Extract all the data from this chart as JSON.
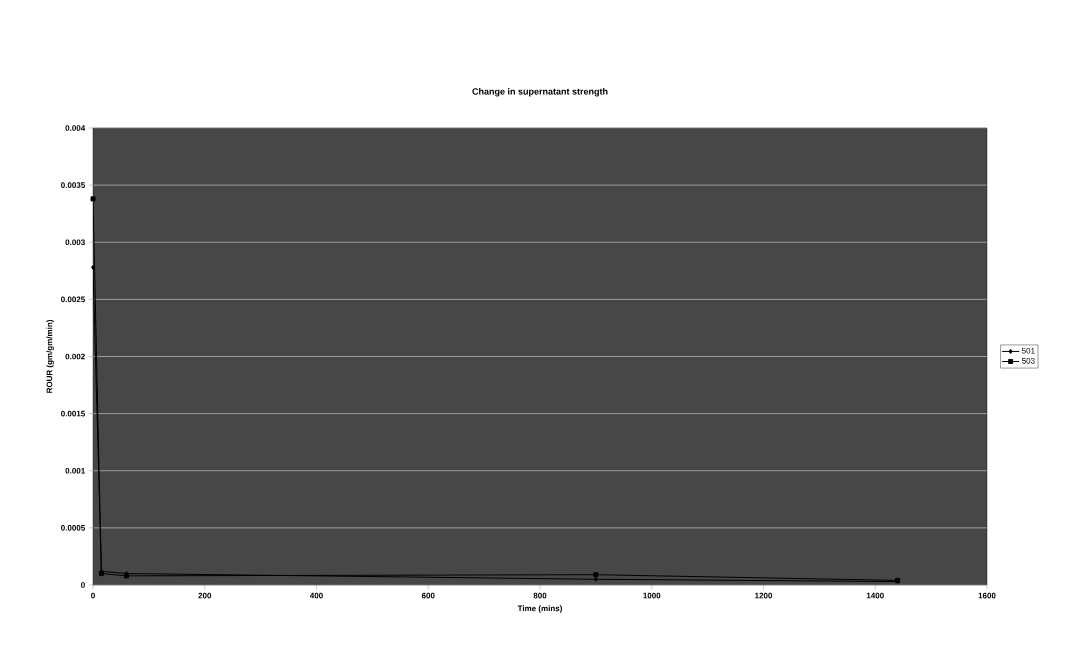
{
  "chart_data": {
    "type": "line",
    "title": "Change in supernatant strength",
    "xlabel": "Time (mins)",
    "ylabel": "ROUR (gm/gm/min)",
    "xlim": [
      0,
      1600
    ],
    "xticks": [
      0,
      200,
      400,
      600,
      800,
      1000,
      1200,
      1400,
      1600
    ],
    "ylim": [
      0,
      0.004
    ],
    "yticks": [
      {
        "value": 0,
        "label": "0"
      },
      {
        "value": 0.0005,
        "label": "0.0005"
      },
      {
        "value": 0.001,
        "label": "0.001"
      },
      {
        "value": 0.0015,
        "label": "0.0015"
      },
      {
        "value": 0.002,
        "label": "0.002"
      },
      {
        "value": 0.0025,
        "label": "0.0025"
      },
      {
        "value": 0.003,
        "label": "0.003"
      },
      {
        "value": 0.0035,
        "label": "0.0035"
      },
      {
        "value": 0.004,
        "label": "0.004"
      }
    ],
    "grid": "y",
    "legend": "right",
    "series": [
      {
        "name": "501",
        "color": "#000000",
        "marker": "diamond",
        "x": [
          0,
          15,
          60,
          900,
          1440
        ],
        "values": [
          0.00278,
          0.00012,
          0.0001,
          5e-05,
          3e-05
        ]
      },
      {
        "name": "503",
        "color": "#000000",
        "marker": "square",
        "x": [
          0,
          15,
          60,
          900,
          1440
        ],
        "values": [
          0.00338,
          0.0001,
          8e-05,
          9e-05,
          4e-05
        ]
      }
    ]
  }
}
